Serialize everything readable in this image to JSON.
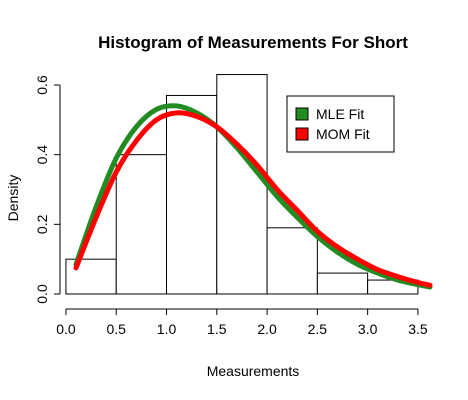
{
  "chart_data": {
    "type": "bar",
    "title": "Histogram of Measurements For Short",
    "xlabel": "Measurements",
    "ylabel": "Density",
    "xlim": [
      0.1,
      3.62
    ],
    "ylim": [
      0,
      0.6
    ],
    "x_ticks": [
      "0.0",
      "0.5",
      "1.0",
      "1.5",
      "2.0",
      "2.5",
      "3.0",
      "3.5"
    ],
    "y_ticks": [
      "0.0",
      "0.2",
      "0.4",
      "0.6"
    ],
    "histogram": [
      {
        "x0": 0.0,
        "x1": 0.5,
        "density": 0.1
      },
      {
        "x0": 0.5,
        "x1": 1.0,
        "density": 0.4
      },
      {
        "x0": 1.0,
        "x1": 1.5,
        "density": 0.57
      },
      {
        "x0": 1.5,
        "x1": 2.0,
        "density": 0.63
      },
      {
        "x0": 2.0,
        "x1": 2.5,
        "density": 0.19
      },
      {
        "x0": 2.5,
        "x1": 3.0,
        "density": 0.06
      },
      {
        "x0": 3.0,
        "x1": 3.5,
        "density": 0.04
      }
    ],
    "series": [
      {
        "name": "MLE Fit",
        "color": "#228B22",
        "x": [
          0.1,
          0.3,
          0.5,
          0.7,
          0.9,
          1.1,
          1.3,
          1.5,
          1.7,
          1.9,
          2.1,
          2.3,
          2.5,
          2.7,
          2.9,
          3.1,
          3.3,
          3.5,
          3.62
        ],
        "values": [
          0.085,
          0.25,
          0.39,
          0.48,
          0.53,
          0.54,
          0.52,
          0.48,
          0.42,
          0.35,
          0.28,
          0.22,
          0.165,
          0.12,
          0.085,
          0.06,
          0.04,
          0.027,
          0.02
        ]
      },
      {
        "name": "MOM Fit",
        "color": "#FF0000",
        "x": [
          0.1,
          0.3,
          0.5,
          0.7,
          0.9,
          1.1,
          1.3,
          1.5,
          1.7,
          1.9,
          2.1,
          2.3,
          2.5,
          2.7,
          2.9,
          3.1,
          3.3,
          3.5,
          3.62
        ],
        "values": [
          0.075,
          0.22,
          0.35,
          0.44,
          0.5,
          0.52,
          0.51,
          0.48,
          0.43,
          0.37,
          0.3,
          0.24,
          0.18,
          0.135,
          0.1,
          0.07,
          0.05,
          0.033,
          0.025
        ]
      }
    ],
    "legend_position": "top-right",
    "grid": false
  }
}
